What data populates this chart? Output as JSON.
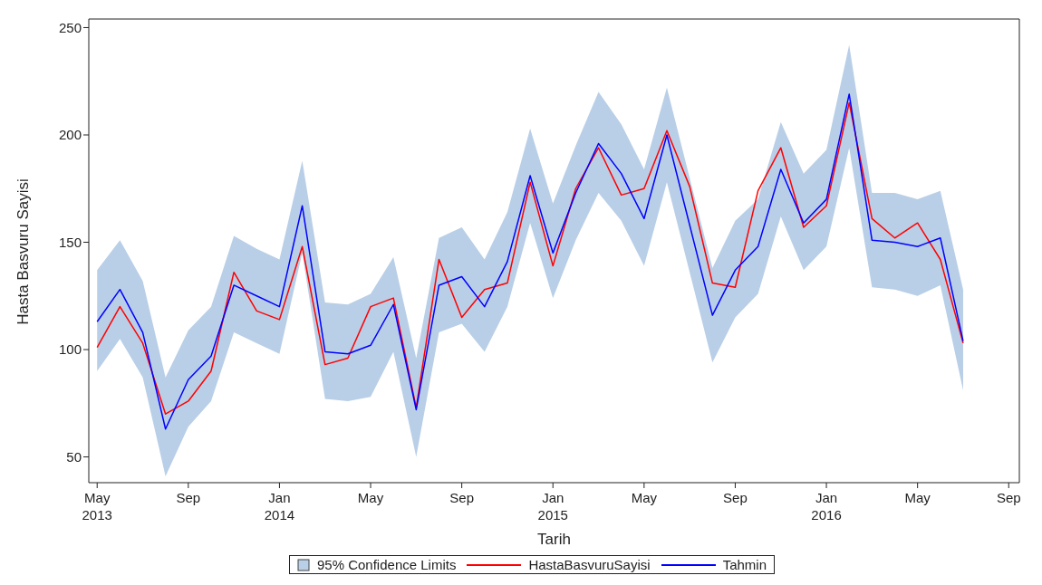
{
  "chart_data": {
    "type": "line",
    "xlabel": "Tarih",
    "ylabel": "Hasta Basvuru Sayisi",
    "x": [
      "2013-05",
      "2013-06",
      "2013-07",
      "2013-08",
      "2013-09",
      "2013-10",
      "2013-11",
      "2013-12",
      "2014-01",
      "2014-02",
      "2014-03",
      "2014-04",
      "2014-05",
      "2014-06",
      "2014-07",
      "2014-08",
      "2014-09",
      "2014-10",
      "2014-11",
      "2014-12",
      "2015-01",
      "2015-02",
      "2015-03",
      "2015-04",
      "2015-05",
      "2015-06",
      "2015-07",
      "2015-08",
      "2015-09",
      "2015-10",
      "2015-11",
      "2015-12",
      "2016-01",
      "2016-02",
      "2016-03",
      "2016-04",
      "2016-05",
      "2016-06",
      "2016-07"
    ],
    "series": [
      {
        "name": "95% Confidence Limits",
        "type": "area",
        "color": "#b9cfe7",
        "values": [
          null,
          null,
          null,
          null,
          null,
          null,
          null,
          null,
          null,
          null,
          null,
          null,
          null,
          null,
          null,
          null,
          null,
          null,
          null,
          null,
          null,
          null,
          null,
          null,
          null,
          null,
          null,
          null,
          null,
          null,
          null,
          null,
          null,
          null,
          null,
          null,
          null,
          null,
          null
        ],
        "lower": [
          90,
          105,
          87,
          41,
          64,
          76,
          108,
          103,
          98,
          145,
          77,
          76,
          78,
          99,
          50,
          108,
          112,
          99,
          120,
          159,
          124,
          151,
          173,
          160,
          139,
          178,
          136,
          94,
          115,
          126,
          162,
          137,
          148,
          194,
          129,
          128,
          125,
          130,
          81
        ],
        "upper": [
          137,
          151,
          132,
          87,
          109,
          120,
          153,
          147,
          142,
          188,
          122,
          121,
          126,
          143,
          96,
          152,
          157,
          142,
          164,
          203,
          168,
          195,
          220,
          205,
          184,
          222,
          180,
          138,
          160,
          170,
          206,
          182,
          193,
          242,
          173,
          173,
          170,
          174,
          128
        ]
      },
      {
        "name": "HastaBasvuruSayisi",
        "color": "#ff0000",
        "values": [
          101,
          120,
          103,
          70,
          76,
          90,
          136,
          118,
          114,
          148,
          93,
          96,
          120,
          124,
          73,
          142,
          115,
          128,
          131,
          178,
          139,
          175,
          194,
          172,
          175,
          202,
          176,
          131,
          129,
          174,
          194,
          157,
          167,
          215,
          161,
          152,
          159,
          142,
          103
        ]
      },
      {
        "name": "Tahmin",
        "color": "#0000ff",
        "values": [
          113,
          128,
          108,
          63,
          86,
          97,
          130,
          125,
          120,
          167,
          99,
          98,
          102,
          121,
          72,
          130,
          134,
          120,
          141,
          181,
          145,
          173,
          196,
          182,
          161,
          200,
          158,
          116,
          137,
          148,
          184,
          159,
          170,
          219,
          151,
          150,
          148,
          152,
          104
        ]
      }
    ],
    "xlim": [
      "2013-04-20",
      "2016-09-15"
    ],
    "xticks": [
      {
        "value": "2013-05",
        "label": "May\n2013"
      },
      {
        "value": "2013-09",
        "label": "Sep"
      },
      {
        "value": "2014-01",
        "label": "Jan\n2014"
      },
      {
        "value": "2014-05",
        "label": "May"
      },
      {
        "value": "2014-09",
        "label": "Sep"
      },
      {
        "value": "2015-01",
        "label": "Jan\n2015"
      },
      {
        "value": "2015-05",
        "label": "May"
      },
      {
        "value": "2015-09",
        "label": "Sep"
      },
      {
        "value": "2016-01",
        "label": "Jan\n2016"
      },
      {
        "value": "2016-05",
        "label": "May"
      },
      {
        "value": "2016-09",
        "label": "Sep"
      }
    ],
    "ylim": [
      38,
      254
    ],
    "yticks": [
      50,
      100,
      150,
      200,
      250
    ],
    "grid": false,
    "legend": "bottom",
    "marker": "none",
    "line_style": "solid"
  }
}
